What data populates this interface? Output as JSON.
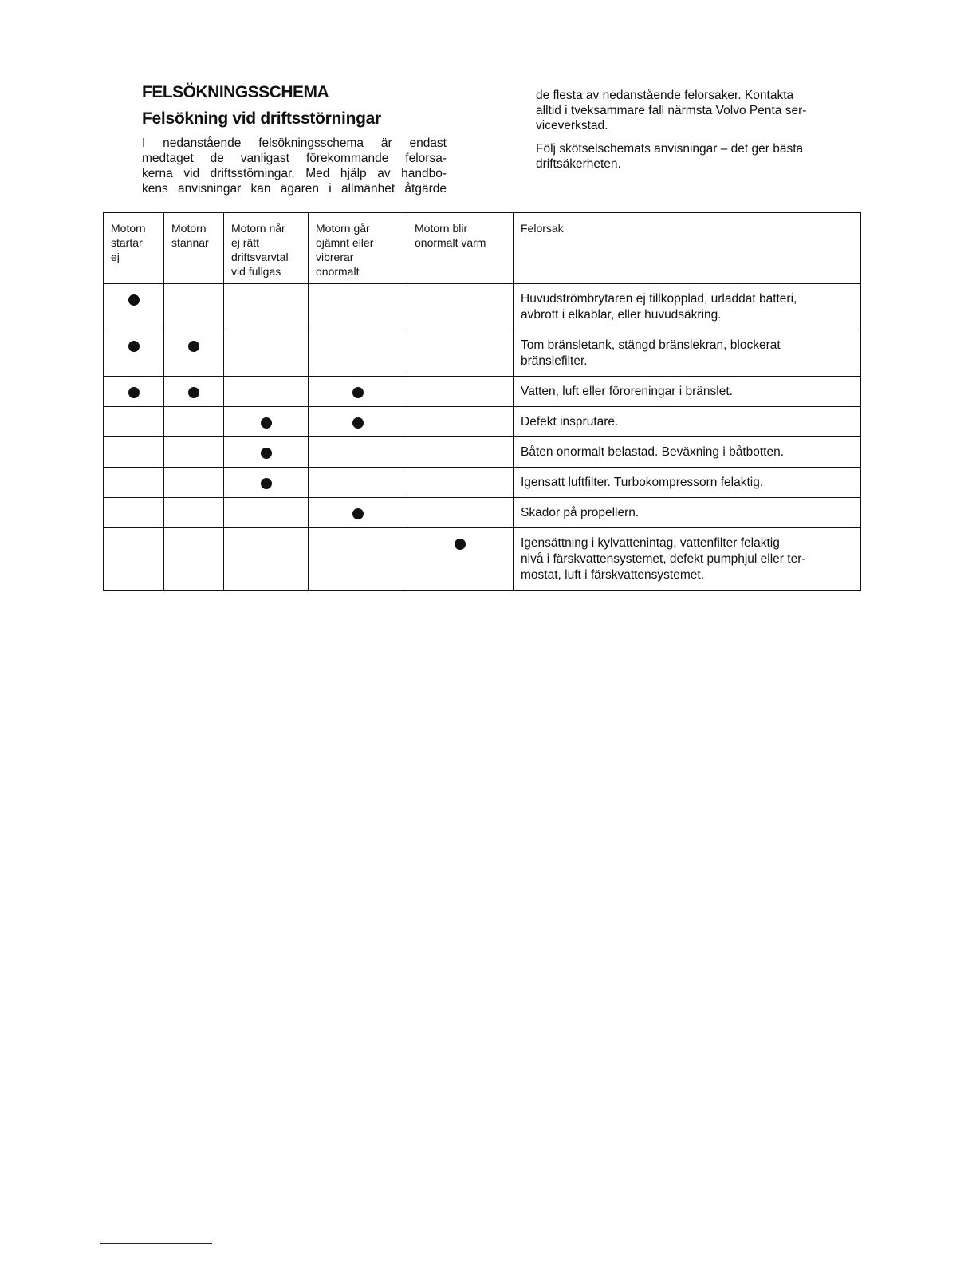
{
  "title": "FELSÖKNINGSSCHEMA",
  "subtitle": "Felsökning vid driftsstörningar",
  "intro_lines": [
    "I nedanstående felsökningsschema är endast",
    "medtaget de vanligast förekommande felorsa-",
    "kerna vid driftsstörningar. Med hjälp av handbo-",
    "kens anvisningar kan ägaren i allmänhet åtgärde"
  ],
  "right_paragraphs": [
    "de flesta av nedanstående felorsaker. Kontakta\nalltid i tveksammare fall närmsta Volvo Penta ser-\nviceverkstad.",
    "Följ skötselschemats anvisningar – det ger bästa\ndriftsäkerheten."
  ],
  "table": {
    "headers": [
      "Motorn\nstartar\nej",
      "Motorn\nstannar",
      "Motorn når\nej rätt\ndriftsvarvtal\nvid fullgas",
      "Motorn går\nojämnt eller\nvibrerar\nonormalt",
      "Motorn blir\nonormalt varm",
      "Felorsak"
    ],
    "rows": [
      {
        "marks": [
          1,
          0,
          0,
          0,
          0
        ],
        "cause": "Huvudströmbrytaren ej tillkopplad, urladdat batteri,\navbrott i elkablar, eller huvudsäkring."
      },
      {
        "marks": [
          1,
          1,
          0,
          0,
          0
        ],
        "cause": "Tom bränsletank, stängd bränslekran, blockerat\nbränslefilter."
      },
      {
        "marks": [
          1,
          1,
          0,
          1,
          0
        ],
        "cause": "Vatten, luft eller föroreningar i bränslet."
      },
      {
        "marks": [
          0,
          0,
          1,
          1,
          0
        ],
        "cause": "Defekt insprutare."
      },
      {
        "marks": [
          0,
          0,
          1,
          0,
          0
        ],
        "cause": "Båten onormalt belastad. Beväxning i båtbotten."
      },
      {
        "marks": [
          0,
          0,
          1,
          0,
          0
        ],
        "cause": "Igensatt luftfilter. Turbokompressorn felaktig."
      },
      {
        "marks": [
          0,
          0,
          0,
          1,
          0
        ],
        "cause": "Skador på propellern."
      },
      {
        "marks": [
          0,
          0,
          0,
          0,
          1
        ],
        "cause": "Igensättning i kylvattenintag, vattenfilter felaktig\nnivå i färskvattensystemet, defekt pumphjul eller ter-\nmostat, luft i färskvattensystemet."
      }
    ]
  }
}
